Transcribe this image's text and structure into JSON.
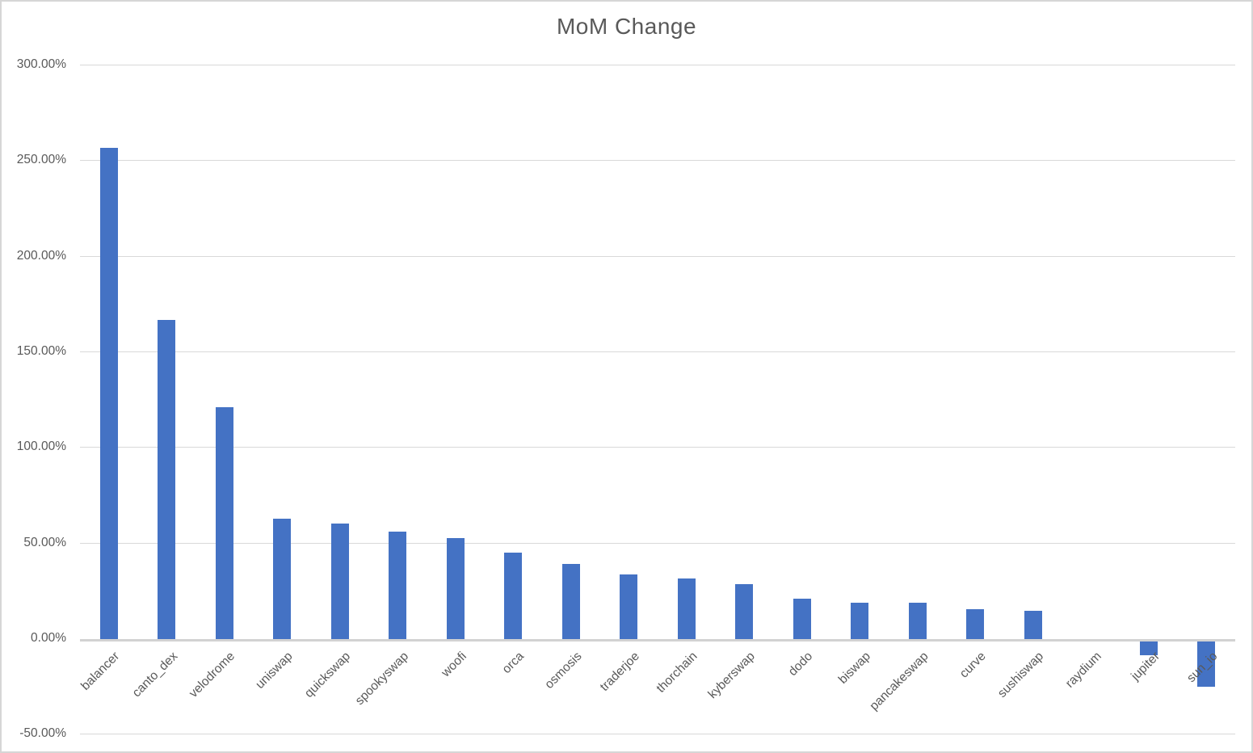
{
  "chart_data": {
    "type": "bar",
    "title": "MoM Change",
    "xlabel": "",
    "ylabel": "",
    "categories": [
      "balancer",
      "canto_dex",
      "velodrome",
      "uniswap",
      "quickswap",
      "spookyswap",
      "woofi",
      "orca",
      "osmosis",
      "traderjoe",
      "thorchain",
      "kyberswap",
      "dodo",
      "biswap",
      "pancakeswap",
      "curve",
      "sushiswap",
      "raydium",
      "jupiter",
      "sun_io"
    ],
    "values": [
      256.3,
      166.3,
      121.0,
      62.5,
      60.1,
      56.0,
      52.4,
      44.6,
      39.0,
      33.2,
      31.2,
      28.4,
      20.9,
      18.6,
      18.5,
      15.2,
      14.5,
      0.0,
      -8.7,
      -25.5
    ],
    "value_unit": "%",
    "ylim": [
      -50,
      300
    ],
    "yticks": [
      {
        "value": 300,
        "label": "300.00%"
      },
      {
        "value": 250,
        "label": "250.00%"
      },
      {
        "value": 200,
        "label": "200.00%"
      },
      {
        "value": 150,
        "label": "150.00%"
      },
      {
        "value": 100,
        "label": "100.00%"
      },
      {
        "value": 50,
        "label": "50.00%"
      },
      {
        "value": 0,
        "label": "0.00%"
      },
      {
        "value": -50,
        "label": "-50.00%"
      }
    ],
    "grid": true,
    "legend_position": "none",
    "colors": {
      "bar": "#4472C4",
      "gridline": "#D9D9D9",
      "axis_line": "#D2D2D2",
      "text": "#595959",
      "border": "#D6D6D6",
      "background": "#FFFFFF"
    }
  }
}
